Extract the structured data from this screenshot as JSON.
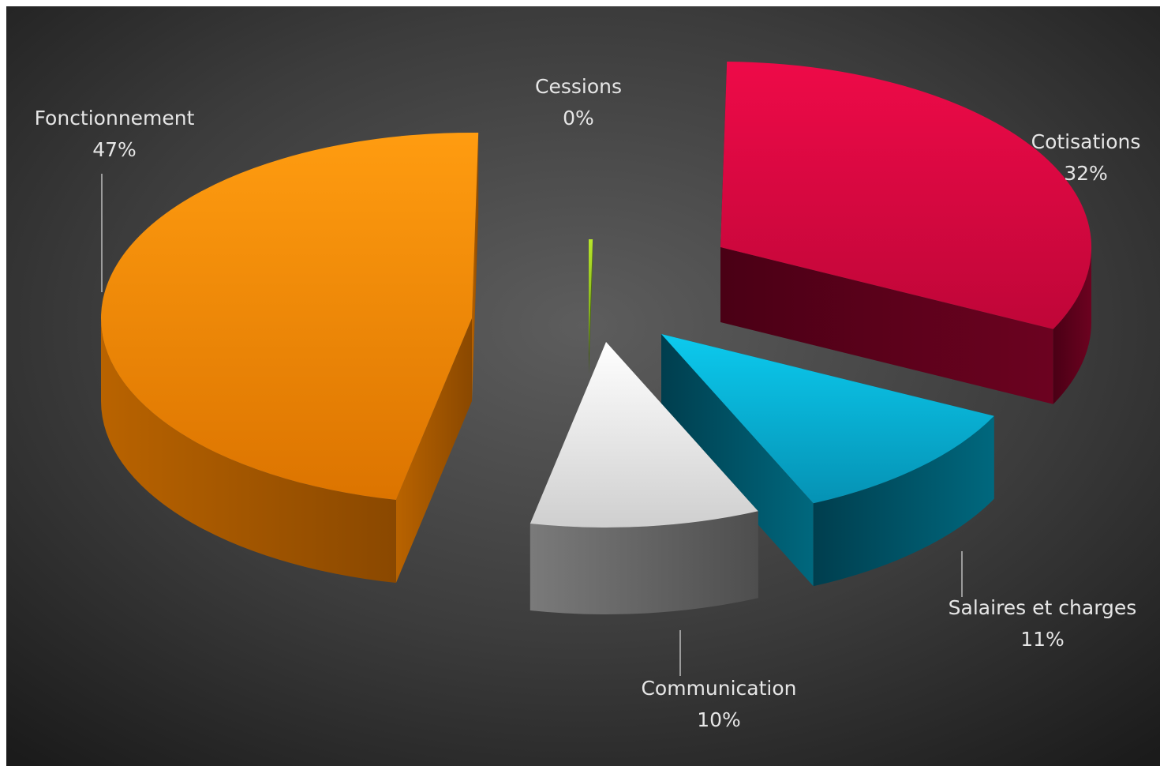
{
  "chart_data": {
    "type": "pie",
    "style": "3d-exploded",
    "background": "dark-gradient",
    "slices": [
      {
        "label": "Fonctionnement",
        "value": 47,
        "display": "47%",
        "color": "#f7920a"
      },
      {
        "label": "Cessions",
        "value": 0,
        "display": "0%",
        "color": "#a6d321"
      },
      {
        "label": "Cotisations",
        "value": 32,
        "display": "32%",
        "color": "#e0083d"
      },
      {
        "label": "Salaires et charges",
        "value": 11,
        "display": "11%",
        "color": "#06c0e3"
      },
      {
        "label": "Communication",
        "value": 10,
        "display": "10%",
        "color": "#efefef"
      }
    ]
  }
}
